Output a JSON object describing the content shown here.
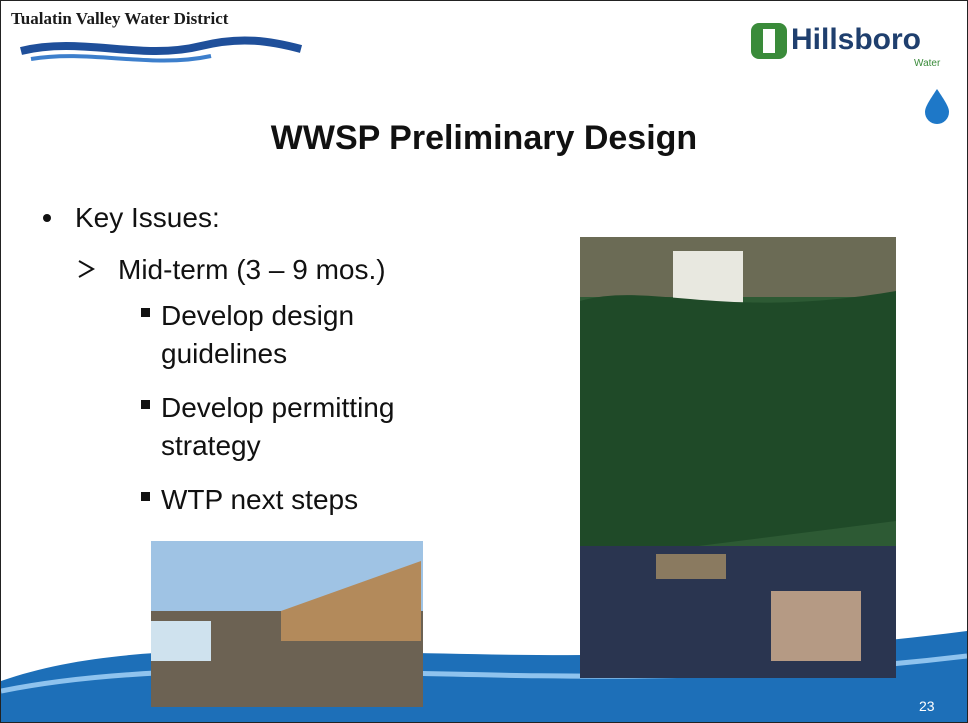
{
  "header": {
    "left_org": "Tualatin Valley Water District",
    "right_org": "Hillsboro",
    "right_org_sub": "Water"
  },
  "title": "WWSP Preliminary Design",
  "bullets": {
    "level1": "Key Issues:",
    "level2": "Mid-term (3 – 9 mos.)",
    "level3": [
      "Develop design guidelines",
      "Develop permitting strategy",
      "WTP next steps"
    ]
  },
  "page_number": "23"
}
